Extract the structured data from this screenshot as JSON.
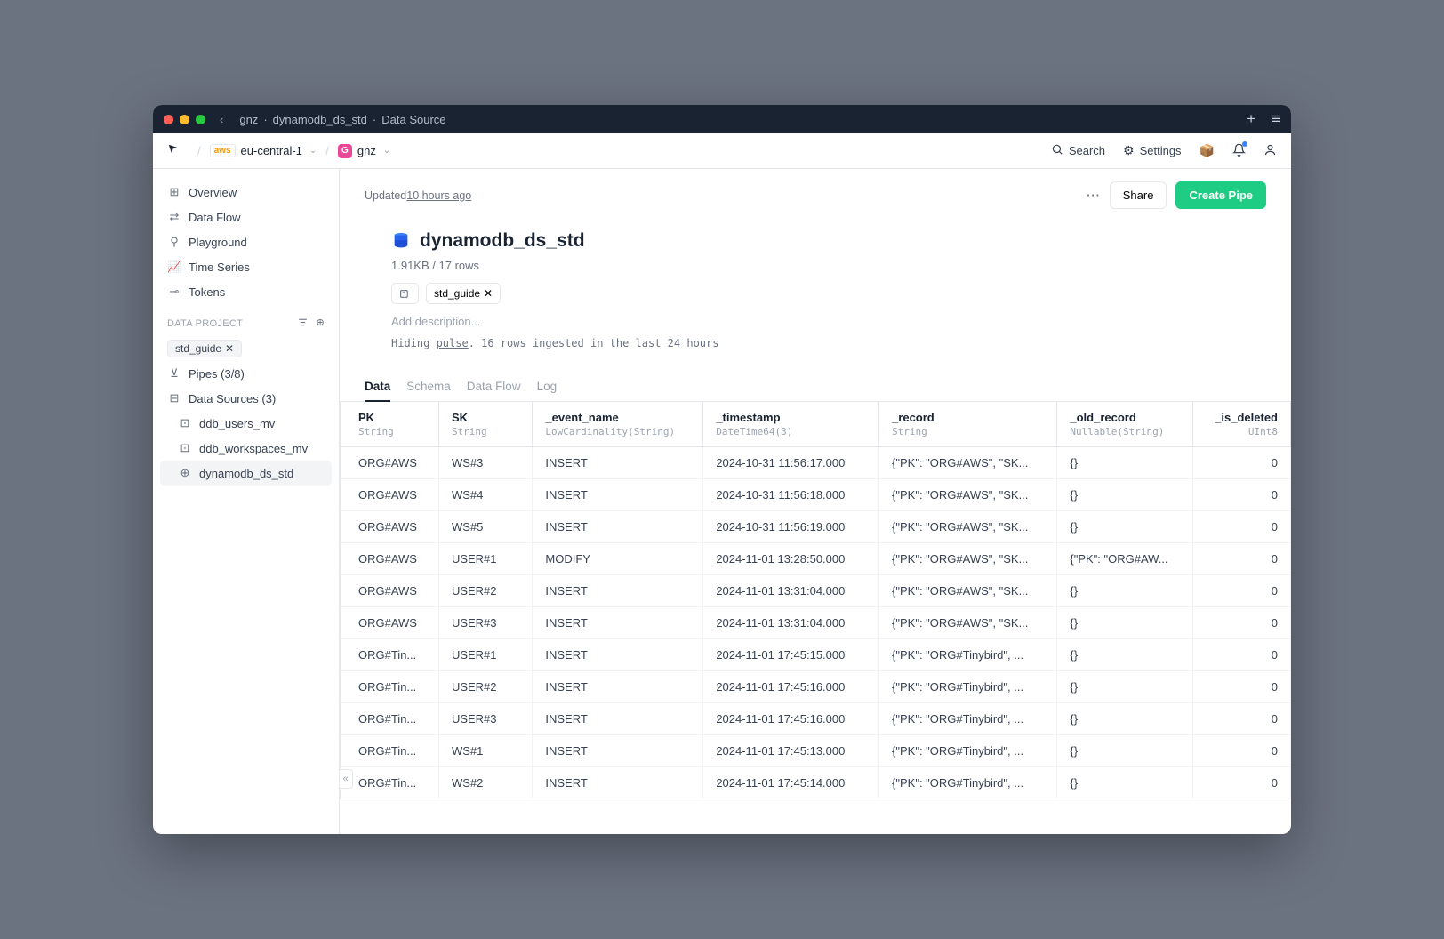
{
  "titlebar": {
    "crumbs": [
      "gnz",
      "dynamodb_ds_std",
      "Data Source"
    ]
  },
  "topnav": {
    "region": "eu-central-1",
    "workspace": "gnz",
    "search": "Search",
    "settings": "Settings"
  },
  "sidebar": {
    "items": [
      {
        "icon": "⊞",
        "label": "Overview"
      },
      {
        "icon": "⇄",
        "label": "Data Flow"
      },
      {
        "icon": "⚲",
        "label": "Playground"
      },
      {
        "icon": "📈",
        "label": "Time Series"
      },
      {
        "icon": "⊸",
        "label": "Tokens"
      }
    ],
    "section_label": "DATA PROJECT",
    "filter_chip": "std_guide",
    "pipes_label": "Pipes (3/8)",
    "datasources_label": "Data Sources (3)",
    "ds_items": [
      {
        "icon": "⊡",
        "label": "ddb_users_mv"
      },
      {
        "icon": "⊡",
        "label": "ddb_workspaces_mv"
      },
      {
        "icon": "⊕",
        "label": "dynamodb_ds_std",
        "active": true
      }
    ]
  },
  "header": {
    "updated_prefix": "Updated ",
    "updated_time": "10 hours ago",
    "more": "···",
    "share": "Share",
    "create": "Create Pipe",
    "title": "dynamodb_ds_std",
    "size": "1.91KB",
    "rows": "17 rows",
    "tag": "std_guide",
    "desc_placeholder": "Add description...",
    "hiding": "Hiding ",
    "pulse": "pulse",
    "hiding_suffix": ". 16 rows ingested in the last 24 hours"
  },
  "tabs": [
    "Data",
    "Schema",
    "Data Flow",
    "Log"
  ],
  "columns": [
    {
      "name": "PK",
      "type": "String"
    },
    {
      "name": "SK",
      "type": "String"
    },
    {
      "name": "_event_name",
      "type": "LowCardinality(String)"
    },
    {
      "name": "_timestamp",
      "type": "DateTime64(3)"
    },
    {
      "name": "_record",
      "type": "String"
    },
    {
      "name": "_old_record",
      "type": "Nullable(String)"
    },
    {
      "name": "_is_deleted",
      "type": "UInt8",
      "right": true
    }
  ],
  "rows": [
    [
      "ORG#AWS",
      "WS#3",
      "INSERT",
      "2024-10-31 11:56:17.000",
      "{\"PK\": \"ORG#AWS\", \"SK...",
      "{}",
      "0"
    ],
    [
      "ORG#AWS",
      "WS#4",
      "INSERT",
      "2024-10-31 11:56:18.000",
      "{\"PK\": \"ORG#AWS\", \"SK...",
      "{}",
      "0"
    ],
    [
      "ORG#AWS",
      "WS#5",
      "INSERT",
      "2024-10-31 11:56:19.000",
      "{\"PK\": \"ORG#AWS\", \"SK...",
      "{}",
      "0"
    ],
    [
      "ORG#AWS",
      "USER#1",
      "MODIFY",
      "2024-11-01 13:28:50.000",
      "{\"PK\": \"ORG#AWS\", \"SK...",
      "{\"PK\": \"ORG#AW...",
      "0"
    ],
    [
      "ORG#AWS",
      "USER#2",
      "INSERT",
      "2024-11-01 13:31:04.000",
      "{\"PK\": \"ORG#AWS\", \"SK...",
      "{}",
      "0"
    ],
    [
      "ORG#AWS",
      "USER#3",
      "INSERT",
      "2024-11-01 13:31:04.000",
      "{\"PK\": \"ORG#AWS\", \"SK...",
      "{}",
      "0"
    ],
    [
      "ORG#Tin...",
      "USER#1",
      "INSERT",
      "2024-11-01 17:45:15.000",
      "{\"PK\": \"ORG#Tinybird\", ...",
      "{}",
      "0"
    ],
    [
      "ORG#Tin...",
      "USER#2",
      "INSERT",
      "2024-11-01 17:45:16.000",
      "{\"PK\": \"ORG#Tinybird\", ...",
      "{}",
      "0"
    ],
    [
      "ORG#Tin...",
      "USER#3",
      "INSERT",
      "2024-11-01 17:45:16.000",
      "{\"PK\": \"ORG#Tinybird\", ...",
      "{}",
      "0"
    ],
    [
      "ORG#Tin...",
      "WS#1",
      "INSERT",
      "2024-11-01 17:45:13.000",
      "{\"PK\": \"ORG#Tinybird\", ...",
      "{}",
      "0"
    ],
    [
      "ORG#Tin...",
      "WS#2",
      "INSERT",
      "2024-11-01 17:45:14.000",
      "{\"PK\": \"ORG#Tinybird\", ...",
      "{}",
      "0"
    ]
  ]
}
